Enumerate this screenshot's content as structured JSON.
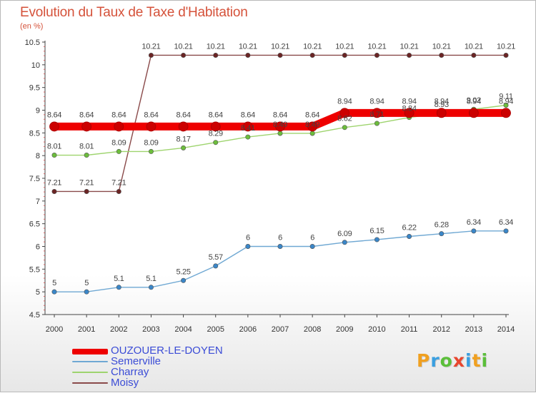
{
  "header": {
    "title": "Evolution du Taux de Taxe d'Habitation",
    "unit": "(en %)"
  },
  "brand": {
    "letters": [
      "P",
      "r",
      "o",
      "x",
      "i",
      "t",
      "i"
    ],
    "colors": [
      "#f0a020",
      "#3a9fe0",
      "#5bbf3a",
      "#e8462e",
      "#3a9fe0",
      "#f0a020",
      "#5bbf3a"
    ]
  },
  "chart_data": {
    "type": "line",
    "title": "Evolution du Taux de Taxe d'Habitation",
    "ylabel": "(en %)",
    "xlabel": "",
    "x": [
      "2000",
      "2001",
      "2002",
      "2003",
      "2004",
      "2005",
      "2006",
      "2007",
      "2008",
      "2009",
      "2010",
      "2011",
      "2012",
      "2013",
      "2014"
    ],
    "ylim": [
      4.5,
      10.5
    ],
    "yticks": [
      "4.5",
      "5",
      "5.5",
      "6",
      "6.5",
      "7",
      "7.5",
      "8",
      "8.5",
      "9",
      "9.5",
      "10",
      "10.5"
    ],
    "grid": false,
    "legend_position": "bottom-left",
    "series": [
      {
        "name": "OUZOUER-LE-DOYEN",
        "color": "#ee0000",
        "marker_color": "#cc0000",
        "values": [
          8.64,
          8.64,
          8.64,
          8.64,
          8.64,
          8.64,
          8.64,
          8.64,
          8.64,
          8.94,
          8.94,
          8.94,
          8.94,
          8.94,
          8.94
        ],
        "labels": [
          "8.64",
          "8.64",
          "8.64",
          "8.64",
          "8.64",
          "8.64",
          "8.64",
          "8.64",
          "8.64",
          "8.94",
          "8.94",
          "8.94",
          "8.94",
          "8.94",
          "8.94"
        ]
      },
      {
        "name": "Semerville",
        "color": "#6fa8d3",
        "marker_color": "#3a86c8",
        "values": [
          5,
          5,
          5.1,
          5.1,
          5.25,
          5.57,
          6,
          6,
          6,
          6.09,
          6.15,
          6.22,
          6.28,
          6.34,
          6.34
        ],
        "labels": [
          "5",
          "5",
          "5.1",
          "5.1",
          "5.25",
          "5.57",
          "6",
          "6",
          "6",
          "6.09",
          "6.15",
          "6.22",
          "6.28",
          "6.34",
          "6.34"
        ]
      },
      {
        "name": "Charray",
        "color": "#9ed46e",
        "marker_color": "#6cbd3c",
        "values": [
          8.01,
          8.01,
          8.09,
          8.09,
          8.17,
          8.29,
          8.41,
          8.49,
          8.49,
          8.62,
          8.71,
          8.84,
          8.93,
          9.02,
          9.11
        ],
        "labels": [
          "8.01",
          "8.01",
          "8.09",
          "8.09",
          "8.17",
          "8.29",
          "8.41",
          "8.49",
          "8.49",
          "8.62",
          "8.71",
          "8.84",
          "8.93",
          "9.02",
          "9.11"
        ]
      },
      {
        "name": "Moisy",
        "color": "#8a4a4a",
        "marker_color": "#6b2424",
        "values": [
          7.21,
          7.21,
          7.21,
          10.21,
          10.21,
          10.21,
          10.21,
          10.21,
          10.21,
          10.21,
          10.21,
          10.21,
          10.21,
          10.21,
          10.21
        ],
        "labels": [
          "7.21",
          "7.21",
          "7.21",
          "10.21",
          "10.21",
          "10.21",
          "10.21",
          "10.21",
          "10.21",
          "10.21",
          "10.21",
          "10.21",
          "10.21",
          "10.21",
          "10.21"
        ]
      }
    ]
  }
}
